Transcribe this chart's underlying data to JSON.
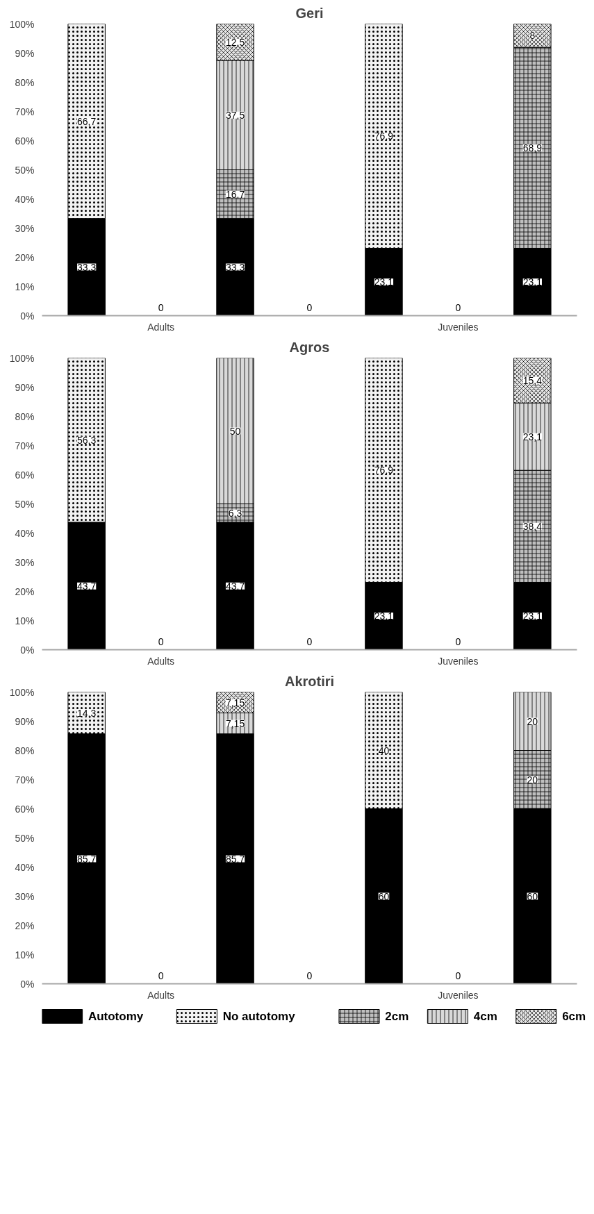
{
  "chart_data": [
    {
      "type": "bar",
      "title": "Geri",
      "stacked": true,
      "categories": [
        null,
        null,
        null,
        null,
        null,
        null,
        null
      ],
      "ylim": [
        0,
        100
      ],
      "yticks": [
        {
          "value": 0,
          "label": "0%"
        },
        {
          "value": 10,
          "label": "10%"
        },
        {
          "value": 20,
          "label": "20%"
        },
        {
          "value": 30,
          "label": "30%"
        },
        {
          "value": 40,
          "label": "40%"
        },
        {
          "value": 50,
          "label": "50%"
        },
        {
          "value": 60,
          "label": "60%"
        },
        {
          "value": 70,
          "label": "70%"
        },
        {
          "value": 80,
          "label": "80%"
        },
        {
          "value": 90,
          "label": "90%"
        },
        {
          "value": 100,
          "label": "100%"
        }
      ],
      "annotations": [
        "Adults",
        "Juveniles"
      ],
      "series": [
        {
          "color": "#000000",
          "values": [
            33.3,
            0,
            33.3,
            0,
            23.1,
            0,
            23.1
          ],
          "value_labels": [
            "33,3",
            "0",
            "33,3",
            "0",
            "23,1",
            "0",
            "23,1"
          ]
        },
        {
          "color": "#f2f2f2",
          "values": [
            66.7,
            null,
            null,
            null,
            76.9,
            null,
            null
          ],
          "value_labels": [
            "66,7",
            null,
            null,
            null,
            "76,9",
            null,
            null
          ]
        },
        {
          "color": "#bfbfbf",
          "values": [
            null,
            null,
            16.7,
            null,
            null,
            null,
            68.9
          ],
          "value_labels": [
            null,
            null,
            "16,7",
            null,
            null,
            null,
            "68,9"
          ]
        },
        {
          "color": "#d9d9d9",
          "values": [
            null,
            null,
            37.5,
            null,
            null,
            null,
            null
          ],
          "value_labels": [
            null,
            null,
            "37,5",
            null,
            null,
            null,
            null
          ]
        },
        {
          "color": "#e6e6e6",
          "values": [
            null,
            null,
            12.5,
            null,
            null,
            null,
            8
          ],
          "value_labels": [
            null,
            null,
            "12,5",
            null,
            null,
            null,
            "8"
          ]
        }
      ]
    },
    {
      "type": "bar",
      "title": "Agros",
      "stacked": true,
      "categories": [
        null,
        null,
        null,
        null,
        null,
        null,
        null
      ],
      "ylim": [
        0,
        100
      ],
      "yticks": [
        {
          "value": 0,
          "label": "0%"
        },
        {
          "value": 10,
          "label": "10%"
        },
        {
          "value": 20,
          "label": "20%"
        },
        {
          "value": 30,
          "label": "30%"
        },
        {
          "value": 40,
          "label": "40%"
        },
        {
          "value": 50,
          "label": "50%"
        },
        {
          "value": 60,
          "label": "60%"
        },
        {
          "value": 70,
          "label": "70%"
        },
        {
          "value": 80,
          "label": "80%"
        },
        {
          "value": 90,
          "label": "90%"
        },
        {
          "value": 100,
          "label": "100%"
        }
      ],
      "annotations": [
        "Adults",
        "Juveniles"
      ],
      "series": [
        {
          "color": "#000000",
          "values": [
            43.7,
            0,
            43.7,
            0,
            23.1,
            0,
            23.1
          ],
          "value_labels": [
            "43,7",
            "0",
            "43,7",
            "0",
            "23,1",
            "0",
            "23,1"
          ]
        },
        {
          "color": "#f2f2f2",
          "values": [
            56.3,
            null,
            null,
            null,
            76.9,
            null,
            null
          ],
          "value_labels": [
            "56,3",
            null,
            null,
            null,
            "76,9",
            null,
            null
          ]
        },
        {
          "color": "#bfbfbf",
          "values": [
            null,
            null,
            6.3,
            null,
            null,
            null,
            38.4
          ],
          "value_labels": [
            null,
            null,
            "6,3",
            null,
            null,
            null,
            "38,4"
          ]
        },
        {
          "color": "#d9d9d9",
          "values": [
            null,
            null,
            50,
            null,
            null,
            null,
            23.1
          ],
          "value_labels": [
            null,
            null,
            "50",
            null,
            null,
            null,
            "23,1"
          ]
        },
        {
          "color": "#e6e6e6",
          "values": [
            null,
            null,
            null,
            null,
            null,
            null,
            15.4
          ],
          "value_labels": [
            null,
            null,
            null,
            null,
            null,
            null,
            "15,4"
          ]
        }
      ]
    },
    {
      "type": "bar",
      "title": "Akrotiri",
      "stacked": true,
      "categories": [
        null,
        null,
        null,
        null,
        null,
        null,
        null
      ],
      "ylim": [
        0,
        100
      ],
      "yticks": [
        {
          "value": 0,
          "label": "0%"
        },
        {
          "value": 10,
          "label": "10%"
        },
        {
          "value": 20,
          "label": "20%"
        },
        {
          "value": 30,
          "label": "30%"
        },
        {
          "value": 40,
          "label": "40%"
        },
        {
          "value": 50,
          "label": "50%"
        },
        {
          "value": 60,
          "label": "60%"
        },
        {
          "value": 70,
          "label": "70%"
        },
        {
          "value": 80,
          "label": "80%"
        },
        {
          "value": 90,
          "label": "90%"
        },
        {
          "value": 100,
          "label": "100%"
        }
      ],
      "annotations": [
        "Adults",
        "Juveniles"
      ],
      "legend": "bottom",
      "series": [
        {
          "name": "Autotomy",
          "color": "#000000",
          "values": [
            85.7,
            0,
            85.7,
            0,
            60,
            0,
            60
          ],
          "value_labels": [
            "85,7",
            "0",
            "85,7",
            "0",
            "60",
            "0",
            "60"
          ]
        },
        {
          "name": "No autotomy",
          "color": "#f2f2f2",
          "values": [
            14.3,
            null,
            null,
            null,
            40,
            null,
            null
          ],
          "value_labels": [
            "14,3",
            null,
            null,
            null,
            "40",
            null,
            null
          ]
        },
        {
          "name": "2cm",
          "color": "#bfbfbf",
          "values": [
            null,
            null,
            null,
            null,
            null,
            null,
            20
          ],
          "value_labels": [
            null,
            null,
            null,
            null,
            null,
            null,
            "20"
          ]
        },
        {
          "name": "4cm",
          "color": "#d9d9d9",
          "values": [
            null,
            null,
            7.15,
            null,
            null,
            null,
            20
          ],
          "value_labels": [
            null,
            null,
            "7,15",
            null,
            null,
            null,
            "20"
          ]
        },
        {
          "name": "6cm",
          "color": "#e6e6e6",
          "values": [
            null,
            null,
            7.15,
            null,
            null,
            null,
            null
          ],
          "value_labels": [
            null,
            null,
            "7,15",
            null,
            null,
            null,
            null
          ]
        }
      ]
    }
  ]
}
